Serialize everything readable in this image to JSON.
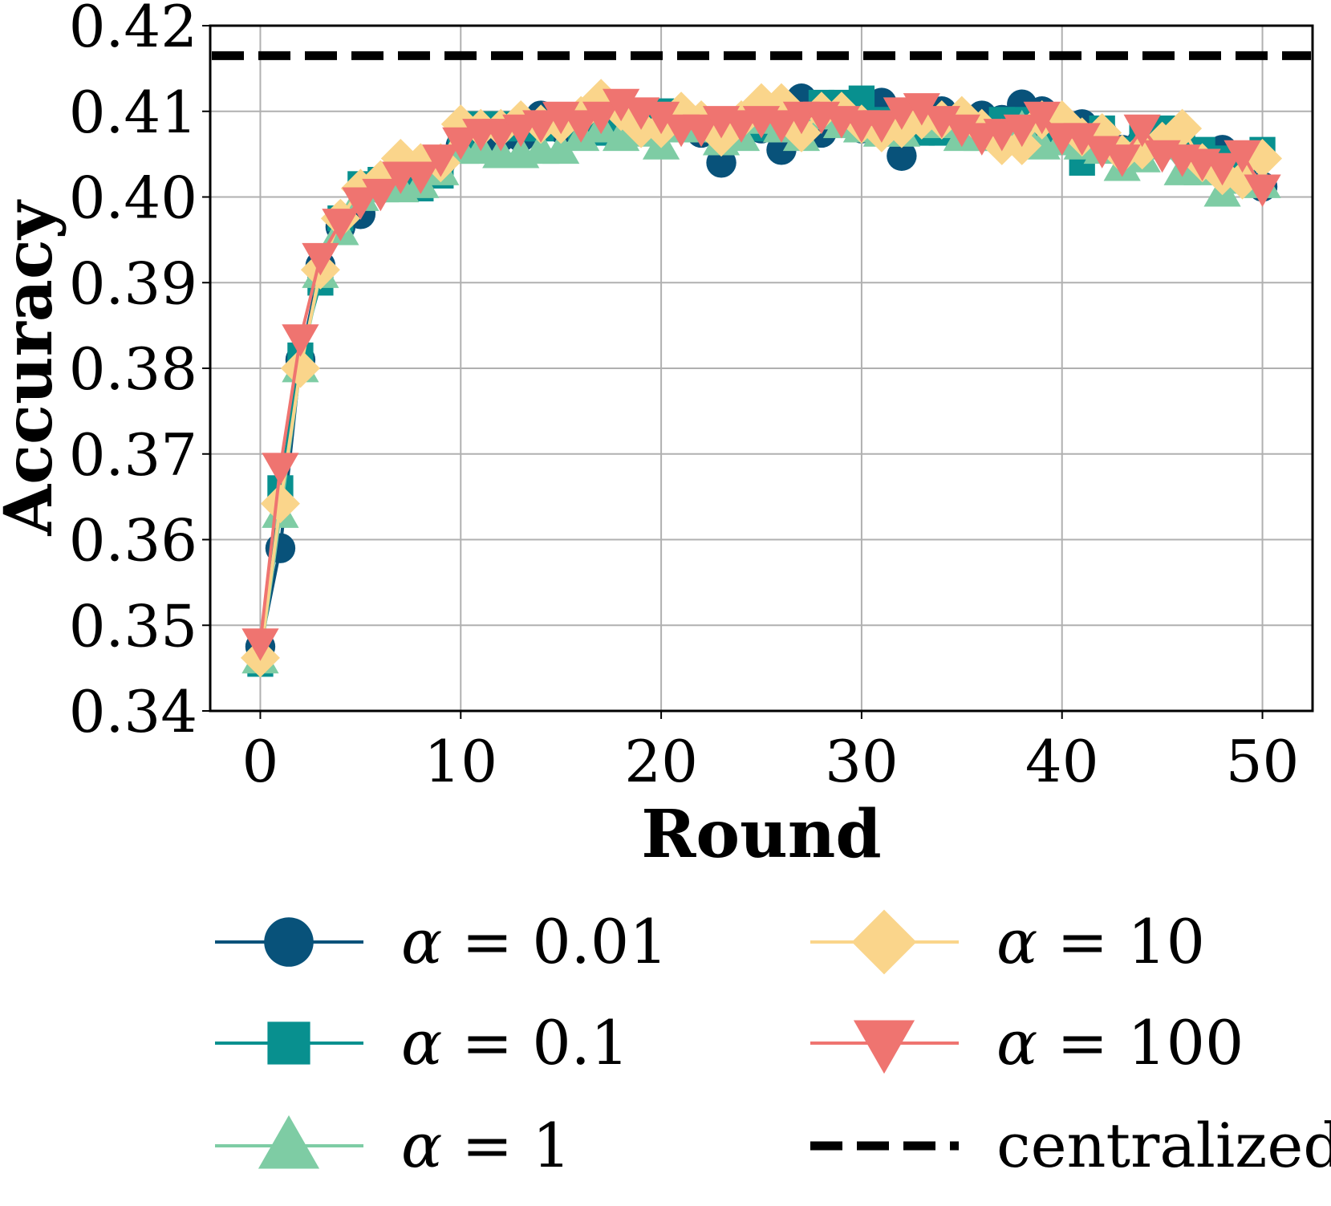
{
  "chart_data": {
    "type": "line",
    "title": "",
    "xlabel": "Round",
    "ylabel": "Accuracy",
    "xlim": [
      -2.5,
      52.5
    ],
    "ylim": [
      0.34,
      0.42
    ],
    "xticks": [
      0,
      10,
      20,
      30,
      40,
      50
    ],
    "yticks": [
      0.34,
      0.35,
      0.36,
      0.37,
      0.38,
      0.39,
      0.4,
      0.41,
      0.42
    ],
    "xtick_labels": [
      "0",
      "10",
      "20",
      "30",
      "40",
      "50"
    ],
    "ytick_labels": [
      "0.34",
      "0.35",
      "0.36",
      "0.37",
      "0.38",
      "0.39",
      "0.40",
      "0.41",
      "0.42"
    ],
    "grid": true,
    "legend_position": "bottom",
    "x": [
      0,
      1,
      2,
      3,
      4,
      5,
      6,
      7,
      8,
      9,
      10,
      11,
      12,
      13,
      14,
      15,
      16,
      17,
      18,
      19,
      20,
      21,
      22,
      23,
      24,
      25,
      26,
      27,
      28,
      29,
      30,
      31,
      32,
      33,
      34,
      35,
      36,
      37,
      38,
      39,
      40,
      41,
      42,
      43,
      44,
      45,
      46,
      47,
      48,
      49,
      50
    ],
    "series": [
      {
        "name": "α = 0.01",
        "color": "#08527a",
        "marker": "circle",
        "values": [
          0.3475,
          0.359,
          0.381,
          0.392,
          0.3965,
          0.398,
          0.401,
          0.4025,
          0.402,
          0.404,
          0.406,
          0.4065,
          0.407,
          0.407,
          0.4095,
          0.408,
          0.4085,
          0.409,
          0.409,
          0.408,
          0.4085,
          0.4085,
          0.4075,
          0.404,
          0.4075,
          0.408,
          0.4055,
          0.4115,
          0.4075,
          0.409,
          0.408,
          0.411,
          0.4048,
          0.4095,
          0.41,
          0.409,
          0.4095,
          0.409,
          0.4108,
          0.41,
          0.4085,
          0.4085,
          0.4075,
          0.4055,
          0.4065,
          0.407,
          0.406,
          0.405,
          0.4055,
          0.4035,
          0.4012
        ]
      },
      {
        "name": "α = 0.1",
        "color": "#08908f",
        "marker": "square",
        "values": [
          0.3455,
          0.366,
          0.3815,
          0.39,
          0.3975,
          0.4015,
          0.402,
          0.401,
          0.401,
          0.4025,
          0.406,
          0.4085,
          0.4085,
          0.408,
          0.408,
          0.4085,
          0.408,
          0.4075,
          0.4085,
          0.408,
          0.41,
          0.4085,
          0.408,
          0.4075,
          0.408,
          0.408,
          0.4085,
          0.4085,
          0.411,
          0.411,
          0.4115,
          0.409,
          0.408,
          0.4075,
          0.4075,
          0.408,
          0.4075,
          0.409,
          0.409,
          0.408,
          0.407,
          0.404,
          0.408,
          0.4055,
          0.407,
          0.408,
          0.406,
          0.4055,
          0.4045,
          0.4045,
          0.4055
        ]
      },
      {
        "name": "α = 1",
        "color": "#7ecca4",
        "marker": "triangle-up",
        "values": [
          0.346,
          0.363,
          0.38,
          0.391,
          0.396,
          0.4,
          0.401,
          0.401,
          0.4015,
          0.403,
          0.4055,
          0.4055,
          0.405,
          0.405,
          0.4055,
          0.4055,
          0.407,
          0.408,
          0.407,
          0.4075,
          0.406,
          0.408,
          0.408,
          0.4065,
          0.407,
          0.409,
          0.408,
          0.407,
          0.4095,
          0.4085,
          0.408,
          0.4075,
          0.4075,
          0.409,
          0.4085,
          0.407,
          0.407,
          0.407,
          0.408,
          0.406,
          0.4065,
          0.406,
          0.4055,
          0.4035,
          0.4045,
          0.406,
          0.403,
          0.403,
          0.4005,
          0.402,
          0.4015
        ]
      },
      {
        "name": "α = 10",
        "color": "#fad58b",
        "marker": "diamond",
        "values": [
          0.3462,
          0.3642,
          0.38,
          0.3915,
          0.3975,
          0.401,
          0.402,
          0.4045,
          0.404,
          0.404,
          0.4085,
          0.408,
          0.408,
          0.409,
          0.4085,
          0.4085,
          0.4095,
          0.4115,
          0.41,
          0.408,
          0.408,
          0.41,
          0.409,
          0.407,
          0.409,
          0.411,
          0.411,
          0.4075,
          0.41,
          0.41,
          0.4085,
          0.4075,
          0.408,
          0.409,
          0.409,
          0.4095,
          0.408,
          0.406,
          0.406,
          0.409,
          0.409,
          0.407,
          0.4075,
          0.405,
          0.4055,
          0.4065,
          0.408,
          0.404,
          0.4025,
          0.402,
          0.4045
        ]
      },
      {
        "name": "α = 100",
        "color": "#ef7470",
        "marker": "triangle-down",
        "values": [
          0.348,
          0.3685,
          0.3835,
          0.393,
          0.397,
          0.3995,
          0.4005,
          0.4025,
          0.4025,
          0.4045,
          0.4065,
          0.4075,
          0.4075,
          0.408,
          0.4085,
          0.4095,
          0.4085,
          0.4095,
          0.411,
          0.41,
          0.4095,
          0.408,
          0.408,
          0.409,
          0.4085,
          0.409,
          0.4085,
          0.4095,
          0.4095,
          0.409,
          0.4085,
          0.4085,
          0.41,
          0.4105,
          0.409,
          0.408,
          0.407,
          0.4075,
          0.408,
          0.4095,
          0.407,
          0.407,
          0.4055,
          0.4045,
          0.408,
          0.405,
          0.4045,
          0.404,
          0.4035,
          0.405,
          0.401
        ]
      }
    ],
    "reference_line": {
      "name": "centralized",
      "color": "#000000",
      "style": "dashed",
      "y": 0.4165
    }
  }
}
